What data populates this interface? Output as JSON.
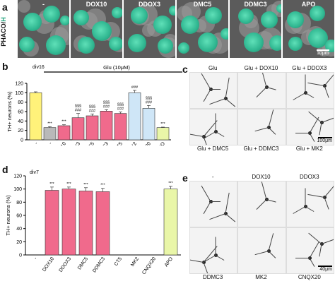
{
  "panel_a": {
    "letter": "a",
    "side_label": "PHACO/",
    "side_label_accent": "H",
    "columns": [
      "-",
      "DOX10",
      "DDOX3",
      "DMC5",
      "DDMC3",
      "APO"
    ],
    "scale": "10μm"
  },
  "panel_b": {
    "letter": "b",
    "div": "div16",
    "treatment": "Glu (10μM)",
    "ylabel": "TH+ neurons (%)"
  },
  "panel_c": {
    "letter": "c",
    "top": [
      "Glu",
      "Glu + DOX10",
      "Glu + DDOX3"
    ],
    "bottom": [
      "Glu + DMC5",
      "Glu + DDMC3",
      "Glu + MK2"
    ],
    "scale": "100μm"
  },
  "panel_d": {
    "letter": "d",
    "div": "div7",
    "ylabel": "TH+ neurons (%)"
  },
  "panel_e": {
    "letter": "e",
    "top": [
      "-",
      "DOX10",
      "DDOX3"
    ],
    "bottom": [
      "DDMC3",
      "MK2",
      "CNQX20"
    ],
    "scale": "40μm"
  },
  "chart_data": [
    {
      "type": "bar",
      "ylabel": "TH+ neurons (%)",
      "ylim": [
        0,
        120
      ],
      "yticks": [
        0,
        20,
        40,
        60,
        80,
        100,
        120
      ],
      "categories": [
        "-",
        "-",
        "DOX10",
        "DDOX3",
        "DMC5",
        "DDMC3",
        "CT5",
        "MK2",
        "CNQX20",
        "APO"
      ],
      "values": [
        100,
        26,
        30,
        47,
        51,
        61,
        56,
        100,
        67,
        26
      ],
      "errors": [
        2,
        2,
        2,
        9,
        4,
        3,
        3,
        5,
        6,
        1
      ],
      "colors": [
        "#fff27a",
        "#b9b9b9",
        "#f06a8c",
        "#f06a8c",
        "#f06a8c",
        "#f06a8c",
        "#f06a8c",
        "#cfe6f7",
        "#cfe6f7",
        "#e9f6a8"
      ],
      "annotations": [
        "",
        "***",
        "***",
        "§§§ ###",
        "§§§ ###",
        "§§§ ###",
        "§§§ ###",
        "###",
        "§§§ ###",
        "***"
      ]
    },
    {
      "type": "bar",
      "ylabel": "TH+ neurons (%)",
      "ylim": [
        0,
        120
      ],
      "yticks": [
        0,
        20,
        40,
        60,
        80,
        100,
        120
      ],
      "categories": [
        "-",
        "DOX10",
        "DDOX3",
        "DMC5",
        "DDMC3",
        "CT5",
        "MK2",
        "CNQX20",
        "APO"
      ],
      "values": [
        0,
        98,
        100,
        97,
        96,
        0,
        0,
        0,
        100
      ],
      "errors": [
        0,
        5,
        3,
        5,
        5,
        0,
        0,
        0,
        4
      ],
      "colors": [
        "#f06a8c",
        "#f06a8c",
        "#f06a8c",
        "#f06a8c",
        "#f06a8c",
        "#f06a8c",
        "#f06a8c",
        "#f06a8c",
        "#e9f6a8"
      ],
      "annotations": [
        "",
        "***",
        "***",
        "***",
        "***",
        "",
        "",
        "",
        "***"
      ]
    }
  ]
}
